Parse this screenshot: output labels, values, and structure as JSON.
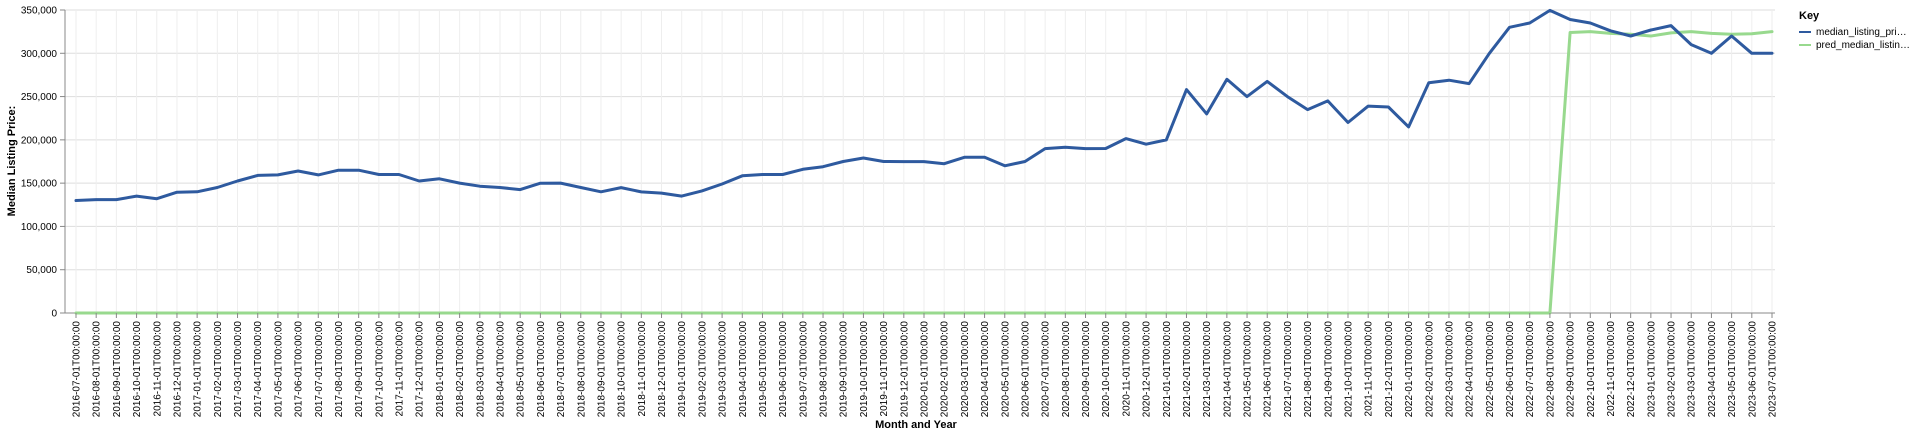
{
  "chart_data": {
    "type": "line",
    "xlabel": "Month and Year",
    "ylabel": "Median Listing Price:",
    "ylim": [
      0,
      350000
    ],
    "y_ticks": [
      "0",
      "50,000",
      "100,000",
      "150,000",
      "200,000",
      "250,000",
      "300,000",
      "350,000"
    ],
    "grid": true,
    "legend_position": "right",
    "legend": {
      "title": "Key",
      "entries": [
        "median_listing_pri…",
        "pred_median_listin…"
      ]
    },
    "x": [
      "2016-07-01T00:00:00",
      "2016-08-01T00:00:00",
      "2016-09-01T00:00:00",
      "2016-10-01T00:00:00",
      "2016-11-01T00:00:00",
      "2016-12-01T00:00:00",
      "2017-01-01T00:00:00",
      "2017-02-01T00:00:00",
      "2017-03-01T00:00:00",
      "2017-04-01T00:00:00",
      "2017-05-01T00:00:00",
      "2017-06-01T00:00:00",
      "2017-07-01T00:00:00",
      "2017-08-01T00:00:00",
      "2017-09-01T00:00:00",
      "2017-10-01T00:00:00",
      "2017-11-01T00:00:00",
      "2017-12-01T00:00:00",
      "2018-01-01T00:00:00",
      "2018-02-01T00:00:00",
      "2018-03-01T00:00:00",
      "2018-04-01T00:00:00",
      "2018-05-01T00:00:00",
      "2018-06-01T00:00:00",
      "2018-07-01T00:00:00",
      "2018-08-01T00:00:00",
      "2018-09-01T00:00:00",
      "2018-10-01T00:00:00",
      "2018-11-01T00:00:00",
      "2018-12-01T00:00:00",
      "2019-01-01T00:00:00",
      "2019-02-01T00:00:00",
      "2019-03-01T00:00:00",
      "2019-04-01T00:00:00",
      "2019-05-01T00:00:00",
      "2019-06-01T00:00:00",
      "2019-07-01T00:00:00",
      "2019-08-01T00:00:00",
      "2019-09-01T00:00:00",
      "2019-10-01T00:00:00",
      "2019-11-01T00:00:00",
      "2019-12-01T00:00:00",
      "2020-01-01T00:00:00",
      "2020-02-01T00:00:00",
      "2020-03-01T00:00:00",
      "2020-04-01T00:00:00",
      "2020-05-01T00:00:00",
      "2020-06-01T00:00:00",
      "2020-07-01T00:00:00",
      "2020-08-01T00:00:00",
      "2020-09-01T00:00:00",
      "2020-10-01T00:00:00",
      "2020-11-01T00:00:00",
      "2020-12-01T00:00:00",
      "2021-01-01T00:00:00",
      "2021-02-01T00:00:00",
      "2021-03-01T00:00:00",
      "2021-04-01T00:00:00",
      "2021-05-01T00:00:00",
      "2021-06-01T00:00:00",
      "2021-07-01T00:00:00",
      "2021-08-01T00:00:00",
      "2021-09-01T00:00:00",
      "2021-10-01T00:00:00",
      "2021-11-01T00:00:00",
      "2021-12-01T00:00:00",
      "2022-01-01T00:00:00",
      "2022-02-01T00:00:00",
      "2022-03-01T00:00:00",
      "2022-04-01T00:00:00",
      "2022-05-01T00:00:00",
      "2022-06-01T00:00:00",
      "2022-07-01T00:00:00",
      "2022-08-01T00:00:00",
      "2022-09-01T00:00:00",
      "2022-10-01T00:00:00",
      "2022-11-01T00:00:00",
      "2022-12-01T00:00:00",
      "2023-01-01T00:00:00",
      "2023-02-01T00:00:00",
      "2023-03-01T00:00:00",
      "2023-04-01T00:00:00",
      "2023-05-01T00:00:00",
      "2023-06-01T00:00:00",
      "2023-07-01T00:00:00"
    ],
    "series": [
      {
        "name": "median_listing_pri…",
        "color": "#2e5a9f",
        "values": [
          130000,
          131000,
          131000,
          135000,
          132000,
          139500,
          140000,
          145000,
          152500,
          159000,
          159500,
          164000,
          159500,
          165000,
          165000,
          160000,
          160000,
          152500,
          155000,
          150000,
          146500,
          145000,
          142500,
          149900,
          150000,
          145000,
          140000,
          144900,
          139900,
          138500,
          135000,
          141000,
          149000,
          158500,
          160000,
          160000,
          166000,
          169000,
          175000,
          179000,
          175000,
          174900,
          174900,
          172500,
          179900,
          179900,
          170000,
          175000,
          189900,
          191500,
          189900,
          190000,
          201500,
          195000,
          200000,
          258000,
          230000,
          270000,
          250000,
          267500,
          250000,
          234900,
          245000,
          220000,
          239000,
          238000,
          215000,
          266000,
          268900,
          265000,
          299900,
          330000,
          335000,
          349500,
          339000,
          335000,
          326000,
          320000,
          326900,
          332000,
          310000,
          300000,
          320000,
          300000,
          300000
        ]
      },
      {
        "name": "pred_median_listin…",
        "color": "#98d98e",
        "values": [
          0,
          0,
          0,
          0,
          0,
          0,
          0,
          0,
          0,
          0,
          0,
          0,
          0,
          0,
          0,
          0,
          0,
          0,
          0,
          0,
          0,
          0,
          0,
          0,
          0,
          0,
          0,
          0,
          0,
          0,
          0,
          0,
          0,
          0,
          0,
          0,
          0,
          0,
          0,
          0,
          0,
          0,
          0,
          0,
          0,
          0,
          0,
          0,
          0,
          0,
          0,
          0,
          0,
          0,
          0,
          0,
          0,
          0,
          0,
          0,
          0,
          0,
          0,
          0,
          0,
          0,
          0,
          0,
          0,
          0,
          0,
          0,
          0,
          0,
          324000,
          325000,
          323000,
          322000,
          320000,
          323500,
          325000,
          323000,
          322000,
          322500,
          325000
        ]
      }
    ]
  }
}
